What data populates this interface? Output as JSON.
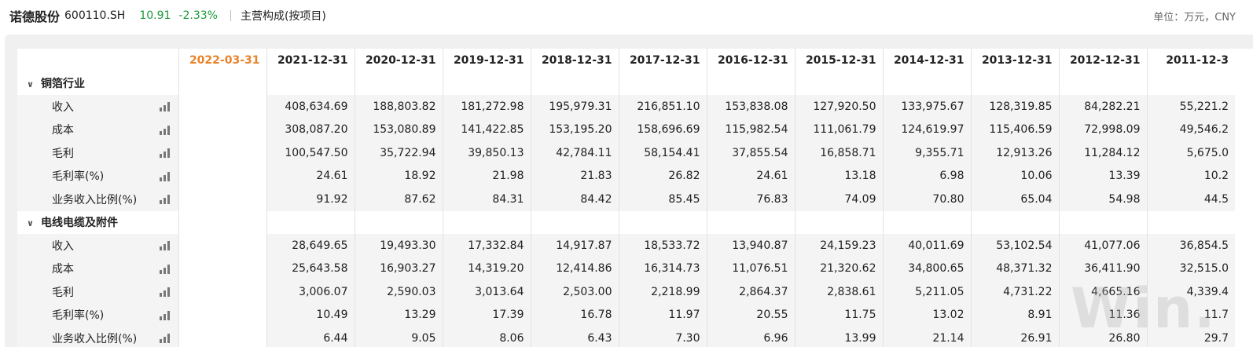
{
  "header": {
    "name": "诺德股份",
    "code": "600110.SH",
    "price": "10.91",
    "change": "-2.33%",
    "breakdown": "主营构成(按项目)",
    "unit": "单位：万元，CNY"
  },
  "table": {
    "dates": [
      "2022-03-31",
      "2021-12-31",
      "2020-12-31",
      "2019-12-31",
      "2018-12-31",
      "2017-12-31",
      "2016-12-31",
      "2015-12-31",
      "2014-12-31",
      "2013-12-31",
      "2012-12-31",
      "2011-12-3"
    ],
    "groups": [
      {
        "name": "铜箔行业",
        "rows": [
          {
            "label": "收入",
            "values": [
              "",
              "408,634.69",
              "188,803.82",
              "181,272.98",
              "195,979.31",
              "216,851.10",
              "153,838.08",
              "127,920.50",
              "133,975.67",
              "128,319.85",
              "84,282.21",
              "55,221.2"
            ]
          },
          {
            "label": "成本",
            "values": [
              "",
              "308,087.20",
              "153,080.89",
              "141,422.85",
              "153,195.20",
              "158,696.69",
              "115,982.54",
              "111,061.79",
              "124,619.97",
              "115,406.59",
              "72,998.09",
              "49,546.2"
            ]
          },
          {
            "label": "毛利",
            "values": [
              "",
              "100,547.50",
              "35,722.94",
              "39,850.13",
              "42,784.11",
              "58,154.41",
              "37,855.54",
              "16,858.71",
              "9,355.71",
              "12,913.26",
              "11,284.12",
              "5,675.0"
            ]
          },
          {
            "label": "毛利率(%)",
            "values": [
              "",
              "24.61",
              "18.92",
              "21.98",
              "21.83",
              "26.82",
              "24.61",
              "13.18",
              "6.98",
              "10.06",
              "13.39",
              "10.2"
            ]
          },
          {
            "label": "业务收入比例(%)",
            "values": [
              "",
              "91.92",
              "87.62",
              "84.31",
              "84.42",
              "85.45",
              "76.83",
              "74.09",
              "70.80",
              "65.04",
              "54.98",
              "44.5"
            ]
          }
        ]
      },
      {
        "name": "电线电缆及附件",
        "rows": [
          {
            "label": "收入",
            "values": [
              "",
              "28,649.65",
              "19,493.30",
              "17,332.84",
              "14,917.87",
              "18,533.72",
              "13,940.87",
              "24,159.23",
              "40,011.69",
              "53,102.54",
              "41,077.06",
              "36,854.5"
            ]
          },
          {
            "label": "成本",
            "values": [
              "",
              "25,643.58",
              "16,903.27",
              "14,319.20",
              "12,414.86",
              "16,314.73",
              "11,076.51",
              "21,320.62",
              "34,800.65",
              "48,371.32",
              "36,411.90",
              "32,515.0"
            ]
          },
          {
            "label": "毛利",
            "values": [
              "",
              "3,006.07",
              "2,590.03",
              "3,013.64",
              "2,503.00",
              "2,218.99",
              "2,864.37",
              "2,838.61",
              "5,211.05",
              "4,731.22",
              "4,665.16",
              "4,339.4"
            ]
          },
          {
            "label": "毛利率(%)",
            "values": [
              "",
              "10.49",
              "13.29",
              "17.39",
              "16.78",
              "11.97",
              "20.55",
              "11.75",
              "13.02",
              "8.91",
              "11.36",
              "11.7"
            ]
          },
          {
            "label": "业务收入比例(%)",
            "values": [
              "",
              "6.44",
              "9.05",
              "8.06",
              "6.43",
              "7.30",
              "6.96",
              "13.99",
              "21.14",
              "26.91",
              "26.80",
              "29.7"
            ]
          }
        ]
      }
    ]
  },
  "icons": {
    "row_chart": "bar-chart-icon",
    "collapse": "chevron-down-icon"
  },
  "watermark": "Wind",
  "colors": {
    "up_down": "#1a9a3a",
    "latest_date": "#e8832a"
  }
}
